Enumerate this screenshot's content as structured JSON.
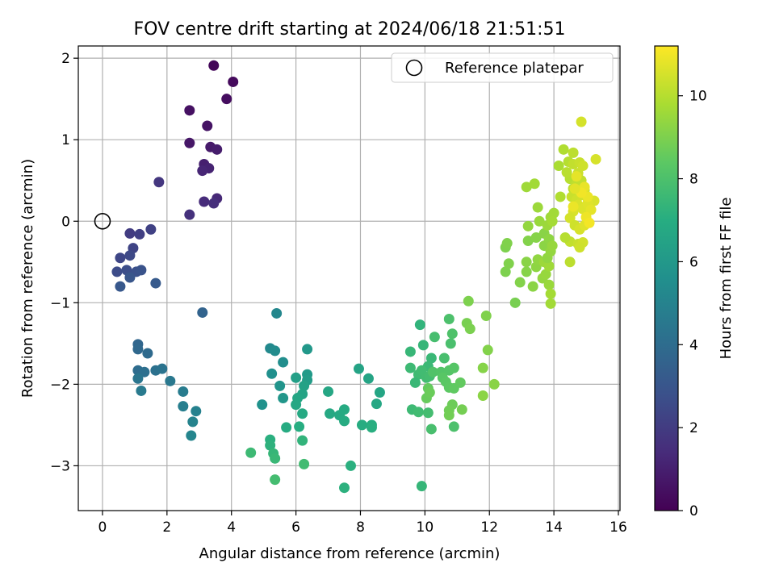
{
  "chart_data": {
    "type": "scatter",
    "title": "FOV centre drift starting at 2024/06/18 21:51:51",
    "xlabel": "Angular distance from reference (arcmin)",
    "ylabel": "Rotation from reference (arcmin)",
    "xlim": [
      -0.75,
      16.05
    ],
    "ylim": [
      -3.55,
      2.15
    ],
    "xticks": [
      "0",
      "2",
      "4",
      "6",
      "8",
      "10",
      "12",
      "14",
      "16"
    ],
    "yticks": [
      "−3",
      "−2",
      "−1",
      "0",
      "1",
      "2"
    ],
    "grid": true,
    "colormap": "viridis",
    "colorbar": {
      "label": "Hours from first FF file",
      "range": [
        0,
        11.2
      ],
      "ticks": [
        "0",
        "2",
        "4",
        "6",
        "8",
        "10"
      ]
    },
    "legend": {
      "entries": [
        "Reference platepar"
      ],
      "placement": "top-right"
    },
    "reference_point": {
      "x": 0,
      "y": 0,
      "marker": "open-circle"
    },
    "series": [
      {
        "points": [
          [
            3.45,
            1.91,
            0.2
          ],
          [
            4.05,
            1.71,
            0.3
          ],
          [
            3.85,
            1.5,
            0.4
          ],
          [
            2.7,
            1.36,
            0.5
          ],
          [
            3.25,
            1.17,
            0.6
          ],
          [
            2.7,
            0.96,
            0.7
          ],
          [
            3.35,
            0.91,
            0.8
          ],
          [
            3.55,
            0.88,
            0.9
          ],
          [
            3.15,
            0.7,
            1.0
          ],
          [
            3.3,
            0.65,
            1.1
          ],
          [
            3.1,
            0.62,
            1.2
          ],
          [
            3.55,
            0.28,
            1.3
          ],
          [
            3.15,
            0.24,
            1.4
          ],
          [
            3.45,
            0.22,
            1.5
          ],
          [
            2.7,
            0.08,
            1.6
          ],
          [
            1.75,
            0.48,
            1.8
          ],
          [
            0.85,
            -0.15,
            2.0
          ],
          [
            1.15,
            -0.16,
            2.1
          ],
          [
            1.5,
            -0.1,
            2.2
          ],
          [
            0.95,
            -0.33,
            2.3
          ],
          [
            0.55,
            -0.45,
            2.4
          ],
          [
            0.85,
            -0.42,
            2.5
          ],
          [
            0.45,
            -0.62,
            2.6
          ],
          [
            0.75,
            -0.6,
            2.7
          ],
          [
            1.05,
            -0.62,
            2.8
          ],
          [
            1.2,
            -0.6,
            2.9
          ],
          [
            0.85,
            -0.69,
            3.0
          ],
          [
            0.55,
            -0.8,
            3.1
          ],
          [
            1.65,
            -0.76,
            3.2
          ],
          [
            3.1,
            -1.12,
            3.6
          ],
          [
            1.1,
            -1.51,
            3.7
          ],
          [
            1.1,
            -1.57,
            3.8
          ],
          [
            1.4,
            -1.62,
            3.9
          ],
          [
            1.1,
            -1.83,
            4.0
          ],
          [
            1.3,
            -1.85,
            4.1
          ],
          [
            1.65,
            -1.83,
            4.2
          ],
          [
            1.85,
            -1.81,
            4.3
          ],
          [
            1.1,
            -1.93,
            4.4
          ],
          [
            2.1,
            -1.96,
            4.5
          ],
          [
            1.2,
            -2.08,
            4.6
          ],
          [
            2.5,
            -2.09,
            4.7
          ],
          [
            2.5,
            -2.27,
            4.8
          ],
          [
            2.9,
            -2.33,
            4.9
          ],
          [
            2.8,
            -2.46,
            5.0
          ],
          [
            2.75,
            -2.63,
            5.1
          ],
          [
            5.4,
            -1.13,
            5.2
          ],
          [
            5.2,
            -1.56,
            5.3
          ],
          [
            5.35,
            -1.59,
            5.4
          ],
          [
            5.6,
            -1.73,
            5.5
          ],
          [
            5.25,
            -1.87,
            5.6
          ],
          [
            4.95,
            -2.25,
            5.7
          ],
          [
            5.5,
            -2.02,
            5.8
          ],
          [
            5.6,
            -2.17,
            5.9
          ],
          [
            6.35,
            -1.57,
            6.0
          ],
          [
            6.35,
            -1.88,
            6.1
          ],
          [
            6.35,
            -1.95,
            6.2
          ],
          [
            6.0,
            -1.92,
            6.3
          ],
          [
            6.25,
            -2.02,
            6.4
          ],
          [
            6.2,
            -2.12,
            6.5
          ],
          [
            6.05,
            -2.17,
            6.6
          ],
          [
            6.0,
            -2.25,
            6.7
          ],
          [
            6.2,
            -2.36,
            6.8
          ],
          [
            5.7,
            -2.53,
            6.9
          ],
          [
            6.1,
            -2.52,
            7.0
          ],
          [
            5.2,
            -2.68,
            7.1
          ],
          [
            5.2,
            -2.75,
            7.2
          ],
          [
            6.2,
            -2.69,
            7.3
          ],
          [
            5.3,
            -2.85,
            7.4
          ],
          [
            5.35,
            -2.91,
            7.5
          ],
          [
            4.6,
            -2.84,
            7.6
          ],
          [
            6.25,
            -2.98,
            7.7
          ],
          [
            5.35,
            -3.17,
            7.8
          ]
        ]
      },
      {
        "points": [
          [
            7.95,
            -1.81,
            6.5
          ],
          [
            8.25,
            -1.93,
            6.55
          ],
          [
            8.6,
            -2.1,
            6.6
          ],
          [
            7.0,
            -2.09,
            6.65
          ],
          [
            8.5,
            -2.24,
            6.7
          ],
          [
            7.05,
            -2.36,
            6.75
          ],
          [
            7.35,
            -2.38,
            6.8
          ],
          [
            7.5,
            -2.31,
            6.85
          ],
          [
            7.5,
            -2.45,
            6.9
          ],
          [
            8.05,
            -2.5,
            6.95
          ],
          [
            8.35,
            -2.5,
            7.0
          ],
          [
            8.35,
            -2.53,
            7.05
          ],
          [
            7.7,
            -3.0,
            7.1
          ],
          [
            7.5,
            -3.27,
            7.15
          ],
          [
            9.85,
            -1.27,
            7.3
          ],
          [
            9.95,
            -1.52,
            7.4
          ],
          [
            9.55,
            -1.6,
            7.45
          ],
          [
            10.2,
            -1.68,
            7.5
          ],
          [
            10.1,
            -1.78,
            7.55
          ],
          [
            9.55,
            -1.8,
            7.6
          ],
          [
            9.8,
            -1.88,
            7.65
          ],
          [
            9.9,
            -1.83,
            7.7
          ],
          [
            10.05,
            -1.92,
            7.75
          ],
          [
            10.15,
            -1.9,
            7.8
          ],
          [
            10.3,
            -1.42,
            7.85
          ],
          [
            10.6,
            -1.68,
            7.9
          ],
          [
            10.8,
            -1.5,
            7.95
          ],
          [
            10.75,
            -1.2,
            8.0
          ],
          [
            10.85,
            -1.38,
            8.05
          ],
          [
            10.25,
            -1.85,
            8.1
          ],
          [
            10.5,
            -1.85,
            8.15
          ],
          [
            10.75,
            -1.83,
            8.2
          ],
          [
            10.9,
            -1.8,
            8.25
          ],
          [
            10.55,
            -1.92,
            8.3
          ],
          [
            10.65,
            -1.97,
            8.35
          ],
          [
            10.75,
            -2.04,
            8.4
          ],
          [
            10.9,
            -2.05,
            8.45
          ],
          [
            11.1,
            -1.98,
            8.5
          ],
          [
            10.1,
            -2.05,
            8.55
          ],
          [
            10.05,
            -2.17,
            8.6
          ],
          [
            10.15,
            -2.1,
            8.65
          ],
          [
            10.85,
            -2.25,
            8.7
          ],
          [
            10.75,
            -2.32,
            8.75
          ],
          [
            10.75,
            -2.38,
            8.8
          ],
          [
            11.15,
            -2.31,
            8.85
          ],
          [
            11.3,
            -1.25,
            8.9
          ],
          [
            11.4,
            -1.32,
            8.95
          ],
          [
            11.35,
            -0.98,
            9.0
          ],
          [
            11.9,
            -1.16,
            9.05
          ],
          [
            11.95,
            -1.58,
            9.1
          ],
          [
            11.8,
            -1.8,
            9.15
          ],
          [
            12.15,
            -2.0,
            9.2
          ],
          [
            11.8,
            -2.14,
            9.25
          ],
          [
            9.6,
            -2.31,
            7.6
          ],
          [
            9.8,
            -2.34,
            7.7
          ],
          [
            10.1,
            -2.35,
            7.8
          ],
          [
            10.2,
            -2.55,
            7.9
          ],
          [
            10.9,
            -2.52,
            8.0
          ],
          [
            9.7,
            -1.98,
            7.5
          ],
          [
            9.9,
            -3.25,
            7.4
          ]
        ]
      },
      {
        "points": [
          [
            12.8,
            -1.0,
            8.9
          ],
          [
            12.5,
            -0.62,
            9.0
          ],
          [
            12.6,
            -0.52,
            9.05
          ],
          [
            12.95,
            -0.75,
            9.1
          ],
          [
            13.15,
            -0.62,
            9.15
          ],
          [
            13.15,
            -0.5,
            9.2
          ],
          [
            13.35,
            -0.8,
            9.25
          ],
          [
            13.45,
            -0.56,
            9.3
          ],
          [
            13.5,
            -0.47,
            9.35
          ],
          [
            13.65,
            -0.7,
            9.4
          ],
          [
            13.75,
            -0.65,
            9.45
          ],
          [
            13.85,
            -0.78,
            9.5
          ],
          [
            13.7,
            -0.5,
            9.55
          ],
          [
            13.85,
            -0.55,
            9.6
          ],
          [
            13.9,
            -1.01,
            9.65
          ],
          [
            13.9,
            -0.89,
            9.7
          ],
          [
            12.5,
            -0.32,
            9.0
          ],
          [
            12.55,
            -0.27,
            9.05
          ],
          [
            13.2,
            -0.24,
            9.1
          ],
          [
            13.45,
            -0.2,
            9.15
          ],
          [
            13.7,
            -0.15,
            9.2
          ],
          [
            13.7,
            -0.3,
            9.25
          ],
          [
            13.85,
            -0.22,
            9.3
          ],
          [
            13.8,
            -0.45,
            9.35
          ],
          [
            13.9,
            -0.37,
            9.4
          ],
          [
            13.95,
            -0.3,
            9.45
          ],
          [
            13.2,
            -0.06,
            9.4
          ],
          [
            13.55,
            0.0,
            9.5
          ],
          [
            13.8,
            -0.05,
            9.55
          ],
          [
            13.9,
            0.05,
            9.6
          ],
          [
            13.5,
            0.17,
            9.55
          ],
          [
            14.0,
            0.1,
            9.65
          ],
          [
            13.95,
            0.0,
            9.7
          ],
          [
            13.15,
            0.42,
            9.6
          ],
          [
            13.4,
            0.46,
            9.65
          ],
          [
            14.15,
            0.68,
            9.8
          ],
          [
            14.3,
            0.88,
            9.9
          ],
          [
            14.45,
            0.73,
            10.0
          ],
          [
            14.6,
            0.84,
            10.1
          ],
          [
            14.6,
            0.7,
            10.2
          ],
          [
            14.8,
            0.72,
            10.3
          ],
          [
            14.75,
            0.59,
            10.35
          ],
          [
            14.9,
            0.68,
            10.4
          ],
          [
            14.85,
            1.22,
            10.5
          ],
          [
            15.3,
            0.76,
            10.55
          ],
          [
            14.5,
            0.52,
            10.0
          ],
          [
            14.6,
            0.4,
            10.1
          ],
          [
            14.7,
            0.46,
            10.15
          ],
          [
            14.85,
            0.5,
            10.2
          ],
          [
            14.95,
            0.38,
            10.25
          ],
          [
            14.55,
            0.3,
            10.3
          ],
          [
            14.7,
            0.26,
            10.4
          ],
          [
            14.85,
            0.32,
            10.45
          ],
          [
            15.05,
            0.28,
            10.5
          ],
          [
            15.25,
            0.25,
            10.6
          ],
          [
            14.75,
            0.2,
            10.6
          ],
          [
            14.9,
            0.15,
            10.65
          ],
          [
            15.05,
            0.22,
            10.7
          ],
          [
            15.15,
            0.14,
            10.8
          ],
          [
            14.6,
            0.12,
            10.6
          ],
          [
            14.5,
            0.04,
            10.5
          ],
          [
            14.65,
            -0.05,
            10.4
          ],
          [
            14.8,
            -0.1,
            10.55
          ],
          [
            14.95,
            -0.05,
            10.7
          ],
          [
            14.5,
            -0.25,
            10.2
          ],
          [
            14.75,
            -0.28,
            10.3
          ],
          [
            14.9,
            -0.26,
            10.45
          ],
          [
            14.8,
            -0.32,
            10.4
          ],
          [
            14.5,
            -0.5,
            10.1
          ],
          [
            14.35,
            -0.2,
            10.0
          ],
          [
            15.05,
            0.3,
            10.9
          ],
          [
            14.95,
            0.42,
            10.85
          ],
          [
            14.85,
            0.35,
            11.0
          ],
          [
            14.7,
            0.55,
            10.8
          ],
          [
            15.0,
            0.05,
            10.95
          ],
          [
            15.1,
            -0.02,
            11.05
          ],
          [
            14.65,
            0.4,
            10.75
          ],
          [
            14.4,
            0.6,
            10.05
          ],
          [
            14.6,
            0.18,
            10.9
          ],
          [
            14.2,
            0.3,
            9.9
          ]
        ]
      }
    ]
  }
}
